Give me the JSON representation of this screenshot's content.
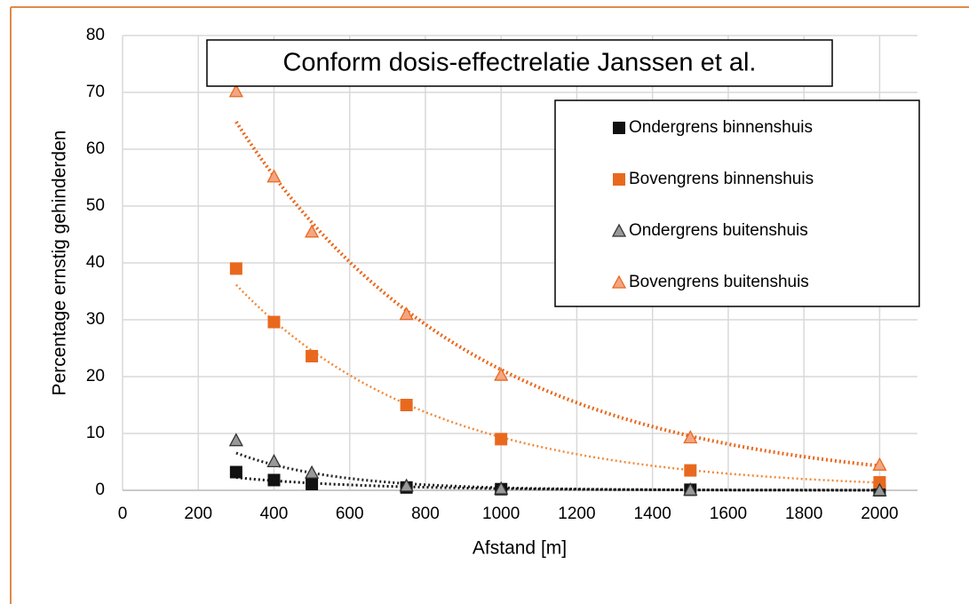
{
  "chart_data": {
    "type": "scatter",
    "title": "Conform dosis-effectrelatie Janssen et al.",
    "xlabel": "Afstand [m]",
    "ylabel": "Percentage ernstig gehinderden",
    "xlim": [
      0,
      2100
    ],
    "xticks": [
      0,
      200,
      400,
      600,
      800,
      1000,
      1200,
      1400,
      1600,
      1800,
      2000
    ],
    "ylim": [
      0,
      80
    ],
    "yticks": [
      0,
      10,
      20,
      30,
      40,
      50,
      60,
      70,
      80
    ],
    "grid": true,
    "legend": "upper right",
    "trendline": "exponential",
    "x": [
      300,
      400,
      500,
      750,
      1000,
      1500,
      2000
    ],
    "series": [
      {
        "name": "Ondergrens binnenshuis",
        "color": "#111111",
        "marker": "square",
        "values": [
          3.2,
          1.8,
          1.1,
          0.5,
          0.2,
          0.1,
          0.0
        ]
      },
      {
        "name": "Bovengrens binnenshuis",
        "color": "#e8691e",
        "marker": "square",
        "values": [
          39,
          29.6,
          23.6,
          15,
          9,
          3.5,
          1.4
        ]
      },
      {
        "name": "Ondergrens buitenshuis",
        "color": "#999999",
        "marker": "triangle",
        "values": [
          8.8,
          5.1,
          3.1,
          0.8,
          0.3,
          0.1,
          0.0
        ]
      },
      {
        "name": "Bovengrens buitenshuis",
        "color": "#f4a582",
        "marker": "triangle",
        "values": [
          70.2,
          55.2,
          45.5,
          31,
          20.3,
          9.3,
          4.5
        ]
      }
    ]
  }
}
